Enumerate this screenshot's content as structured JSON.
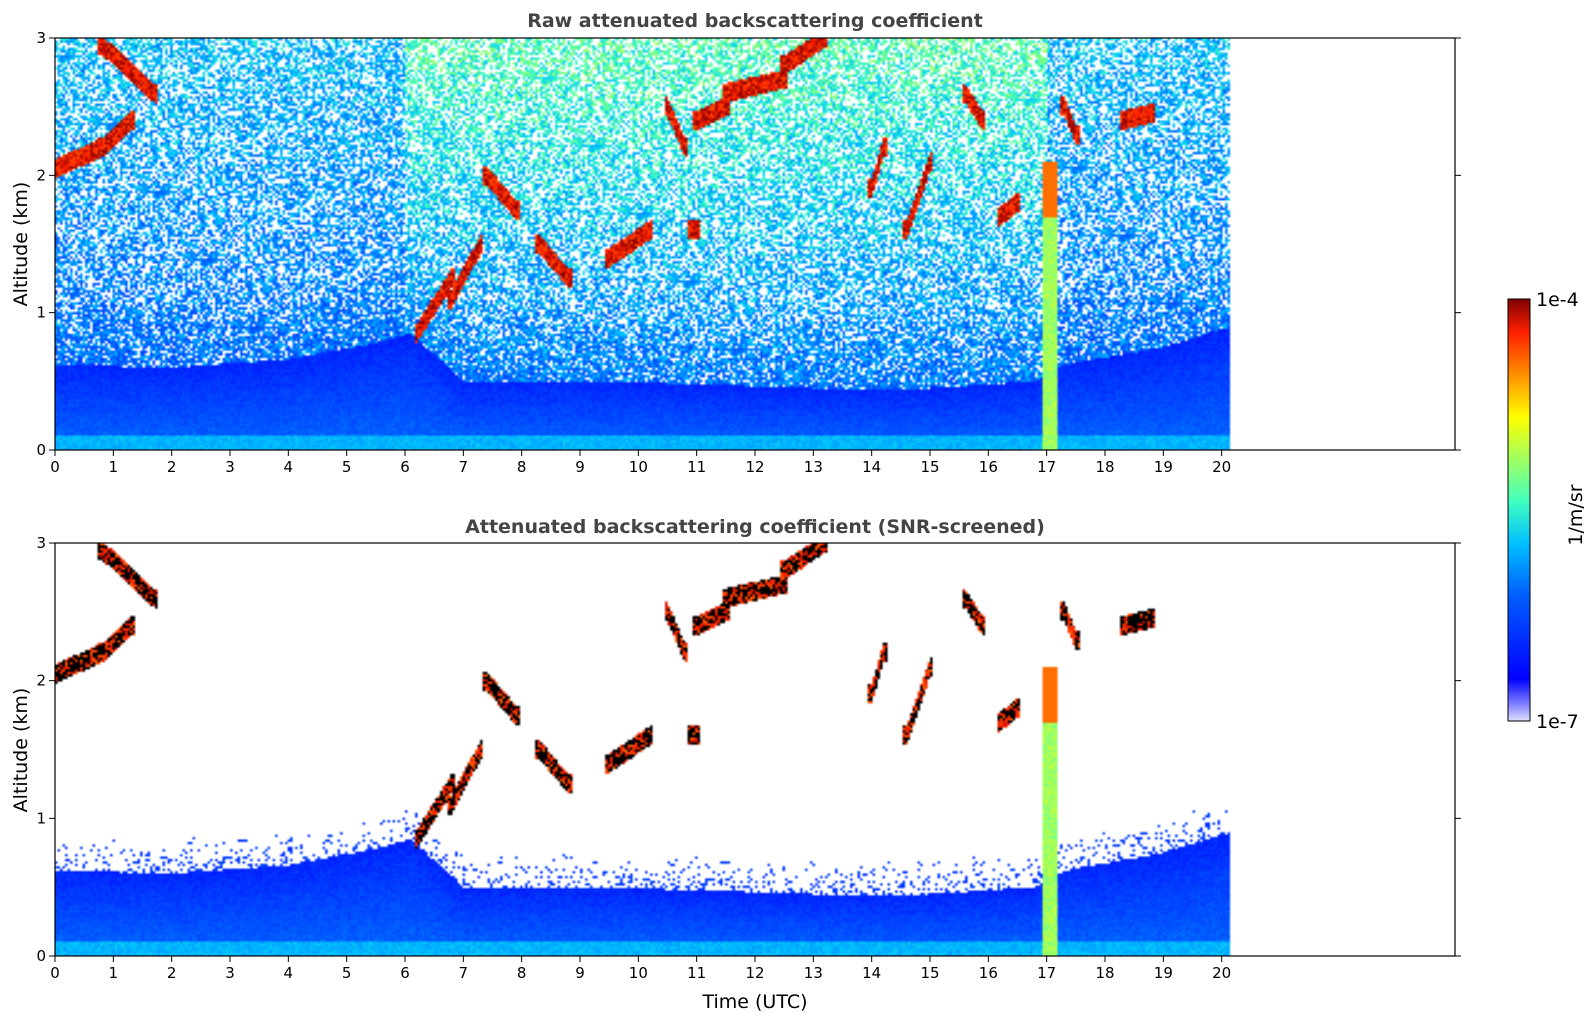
{
  "chart_data": [
    {
      "type": "heatmap",
      "title": "Raw attenuated backscattering coefficient",
      "ylabel": "Altitude (km)",
      "xlabel": "",
      "xlim": [
        0,
        24
      ],
      "ylim": [
        0,
        3
      ],
      "x_ticks": [
        "0",
        "1",
        "2",
        "3",
        "4",
        "5",
        "6",
        "7",
        "8",
        "9",
        "10",
        "11",
        "12",
        "13",
        "14",
        "15",
        "16",
        "17",
        "18",
        "19",
        "20"
      ],
      "y_ticks": [
        "0",
        "1",
        "2",
        "3"
      ],
      "data_end_time": 20.15,
      "screened": false
    },
    {
      "type": "heatmap",
      "title": "Attenuated backscattering coefficient (SNR-screened)",
      "ylabel": "Altitude (km)",
      "xlabel": "Time (UTC)",
      "xlim": [
        0,
        24
      ],
      "ylim": [
        0,
        3
      ],
      "x_ticks": [
        "0",
        "1",
        "2",
        "3",
        "4",
        "5",
        "6",
        "7",
        "8",
        "9",
        "10",
        "11",
        "12",
        "13",
        "14",
        "15",
        "16",
        "17",
        "18",
        "19",
        "20"
      ],
      "y_ticks": [
        "0",
        "1",
        "2",
        "3"
      ],
      "data_end_time": 20.15,
      "screened": true
    }
  ],
  "colorbar": {
    "label": "1/m/sr",
    "max_label": "1e-4",
    "min_label": "1e-7",
    "scale": "log",
    "colormap": "jet"
  },
  "features": {
    "boundary_layer_top_km": [
      [
        0,
        0.62
      ],
      [
        2,
        0.6
      ],
      [
        4,
        0.66
      ],
      [
        5.5,
        0.78
      ],
      [
        6.1,
        0.85
      ],
      [
        7,
        0.5
      ],
      [
        9,
        0.5
      ],
      [
        11,
        0.48
      ],
      [
        13,
        0.45
      ],
      [
        15,
        0.45
      ],
      [
        16.8,
        0.5
      ],
      [
        17.3,
        0.62
      ],
      [
        19,
        0.75
      ],
      [
        20.15,
        0.9
      ]
    ],
    "precip_shaft": {
      "t0": 16.95,
      "t1": 17.2,
      "top_km": 2.1
    },
    "cloud_segments": [
      [
        0.0,
        2.05,
        0.8,
        2.2
      ],
      [
        0.8,
        2.2,
        1.3,
        2.4
      ],
      [
        0.8,
        2.95,
        1.7,
        2.6
      ],
      [
        6.2,
        0.85,
        6.8,
        1.25
      ],
      [
        6.8,
        1.1,
        7.3,
        1.5
      ],
      [
        7.4,
        2.0,
        7.9,
        1.75
      ],
      [
        8.3,
        1.5,
        8.8,
        1.25
      ],
      [
        9.5,
        1.4,
        10.2,
        1.6
      ],
      [
        10.5,
        2.5,
        10.8,
        2.2
      ],
      [
        10.9,
        1.6,
        11.0,
        1.6
      ],
      [
        11.0,
        2.4,
        11.5,
        2.5
      ],
      [
        11.5,
        2.6,
        12.5,
        2.7
      ],
      [
        12.5,
        2.8,
        13.2,
        3.0
      ],
      [
        14.0,
        1.9,
        14.2,
        2.2
      ],
      [
        14.6,
        1.6,
        15.0,
        2.1
      ],
      [
        15.6,
        2.6,
        15.9,
        2.4
      ],
      [
        16.2,
        1.7,
        16.5,
        1.8
      ],
      [
        17.3,
        2.5,
        17.5,
        2.3
      ],
      [
        18.3,
        2.4,
        18.8,
        2.45
      ]
    ]
  }
}
